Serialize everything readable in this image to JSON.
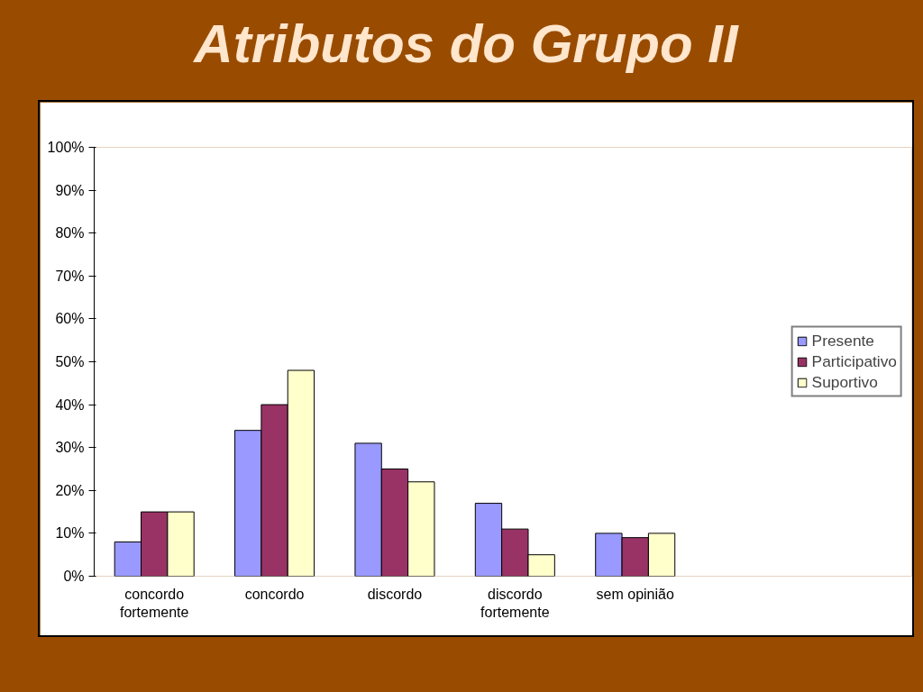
{
  "chart_data": {
    "type": "bar",
    "title": "Atributos do Grupo II",
    "categories": [
      "concordo fortemente",
      "concordo",
      "discordo",
      "discordo fortemente",
      "sem opinião"
    ],
    "series": [
      {
        "name": "Presente",
        "color": "#9999ff",
        "values": [
          8,
          34,
          31,
          17,
          10
        ]
      },
      {
        "name": "Participativo",
        "color": "#993366",
        "values": [
          15,
          40,
          25,
          11,
          9
        ]
      },
      {
        "name": "Suportivo",
        "color": "#ffffcc",
        "values": [
          15,
          48,
          22,
          5,
          10
        ]
      }
    ],
    "ylim": [
      0,
      100
    ],
    "yticks": [
      {
        "value": 0,
        "label": "0%"
      },
      {
        "value": 10,
        "label": "10%"
      },
      {
        "value": 20,
        "label": "20%"
      },
      {
        "value": 30,
        "label": "30%"
      },
      {
        "value": 40,
        "label": "40%"
      },
      {
        "value": 50,
        "label": "50%"
      },
      {
        "value": 60,
        "label": "60%"
      },
      {
        "value": 70,
        "label": "70%"
      },
      {
        "value": 80,
        "label": "80%"
      },
      {
        "value": 90,
        "label": "90%"
      },
      {
        "value": 100,
        "label": "100%"
      }
    ],
    "grid": false,
    "legend": "right"
  }
}
